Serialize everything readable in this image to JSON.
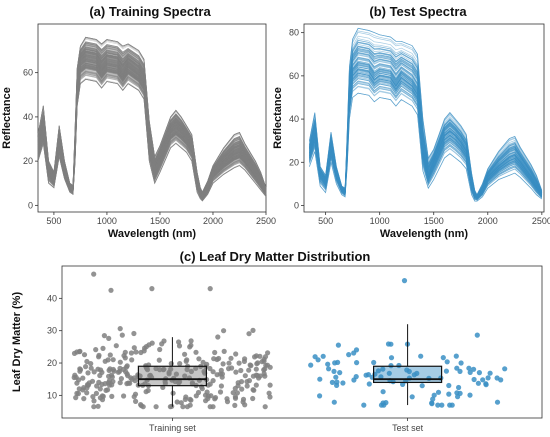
{
  "chart_data": [
    {
      "panel": "(a) Training Spectra",
      "type": "line",
      "title": "(a) Training Spectra",
      "xlabel": "Wavelength (nm)",
      "ylabel": "Reflectance",
      "xlim": [
        350,
        2500
      ],
      "ylim": [
        -3,
        82
      ],
      "xticks": [
        500,
        1000,
        1500,
        2000,
        2500
      ],
      "yticks": [
        0,
        20,
        40,
        60
      ],
      "series_count": 300,
      "color": "#808080",
      "x": [
        350,
        400,
        450,
        500,
        550,
        600,
        650,
        680,
        700,
        720,
        750,
        800,
        900,
        950,
        1000,
        1100,
        1150,
        1200,
        1300,
        1350,
        1400,
        1450,
        1500,
        1600,
        1650,
        1700,
        1750,
        1800,
        1850,
        1880,
        1900,
        1950,
        2000,
        2100,
        2200,
        2250,
        2300,
        2400,
        2450,
        2500
      ],
      "series": [
        {
          "values": [
            20,
            28,
            10,
            8,
            22,
            12,
            6,
            5,
            20,
            45,
            55,
            57,
            56,
            53,
            56,
            55,
            52,
            55,
            52,
            48,
            20,
            10,
            15,
            26,
            28,
            26,
            24,
            20,
            6,
            3,
            2,
            5,
            10,
            14,
            17,
            18,
            16,
            10,
            7,
            4
          ]
        },
        {
          "values": [
            25,
            34,
            16,
            12,
            28,
            16,
            8,
            7,
            25,
            52,
            65,
            67,
            66,
            62,
            65,
            64,
            60,
            64,
            60,
            56,
            28,
            16,
            22,
            34,
            36,
            34,
            31,
            27,
            12,
            6,
            4,
            8,
            15,
            20,
            24,
            25,
            22,
            15,
            11,
            6
          ]
        },
        {
          "values": [
            32,
            45,
            20,
            15,
            36,
            20,
            10,
            9,
            35,
            62,
            72,
            76,
            75,
            73,
            75,
            74,
            72,
            73,
            70,
            66,
            38,
            22,
            27,
            40,
            43,
            40,
            36,
            32,
            15,
            8,
            6,
            11,
            18,
            26,
            32,
            33,
            28,
            20,
            15,
            8
          ]
        }
      ]
    },
    {
      "panel": "(b) Test Spectra",
      "type": "line",
      "title": "(b) Test Spectra",
      "xlabel": "Wavelength (nm)",
      "ylabel": "Reflectance",
      "xlim": [
        300,
        2520
      ],
      "ylim": [
        -3,
        84
      ],
      "xticks": [
        500,
        1000,
        1500,
        2000,
        2500
      ],
      "yticks": [
        0,
        20,
        40,
        60,
        80
      ],
      "series_count": 100,
      "color": "#3a8fc4",
      "x": [
        350,
        400,
        450,
        500,
        550,
        600,
        650,
        680,
        700,
        720,
        750,
        800,
        900,
        950,
        1000,
        1100,
        1150,
        1200,
        1300,
        1350,
        1400,
        1450,
        1500,
        1600,
        1650,
        1700,
        1750,
        1800,
        1850,
        1880,
        1900,
        1950,
        2000,
        2100,
        2200,
        2250,
        2300,
        2400,
        2450,
        2500
      ],
      "series": [
        {
          "values": [
            18,
            25,
            9,
            6,
            20,
            10,
            5,
            4,
            18,
            40,
            50,
            52,
            51,
            48,
            50,
            49,
            46,
            49,
            46,
            42,
            16,
            8,
            12,
            22,
            24,
            22,
            20,
            17,
            5,
            2,
            2,
            4,
            8,
            12,
            14,
            15,
            13,
            8,
            5,
            3
          ]
        },
        {
          "values": [
            24,
            33,
            15,
            11,
            27,
            15,
            8,
            6,
            24,
            50,
            62,
            65,
            64,
            60,
            62,
            61,
            57,
            61,
            57,
            53,
            26,
            14,
            20,
            32,
            34,
            32,
            29,
            25,
            10,
            5,
            4,
            7,
            13,
            18,
            22,
            23,
            20,
            13,
            9,
            5
          ]
        },
        {
          "values": [
            30,
            43,
            18,
            14,
            34,
            18,
            9,
            8,
            34,
            64,
            77,
            82,
            81,
            80,
            79,
            78,
            76,
            76,
            74,
            70,
            40,
            22,
            26,
            40,
            43,
            40,
            37,
            33,
            15,
            7,
            5,
            10,
            17,
            25,
            31,
            32,
            27,
            19,
            14,
            7
          ]
        }
      ]
    },
    {
      "panel": "(c) Leaf Dry Matter Distribution",
      "type": "scatter",
      "title": "(c) Leaf Dry Matter Distribution",
      "xlabel": "",
      "ylabel": "Leaf Dry Matter (%)",
      "ylim": [
        3,
        50
      ],
      "yticks": [
        10,
        20,
        30,
        40
      ],
      "categories": [
        "Training set",
        "Test set"
      ],
      "colors": [
        "#808080",
        "#3a8fc4"
      ],
      "boxes": [
        {
          "name": "Training set",
          "min": 6.5,
          "q1": 13,
          "median": 15,
          "q3": 19,
          "max": 28
        },
        {
          "name": "Test set",
          "min": 7,
          "q1": 14,
          "median": 15,
          "q3": 19,
          "max": 32
        }
      ],
      "points_count": [
        300,
        100
      ],
      "outliers": [
        {
          "group": "Training set",
          "value": 47.5
        },
        {
          "group": "Training set",
          "value": 43
        },
        {
          "group": "Training set",
          "value": 43
        },
        {
          "group": "Training set",
          "value": 42.5
        },
        {
          "group": "Test set",
          "value": 45.5
        }
      ]
    }
  ]
}
